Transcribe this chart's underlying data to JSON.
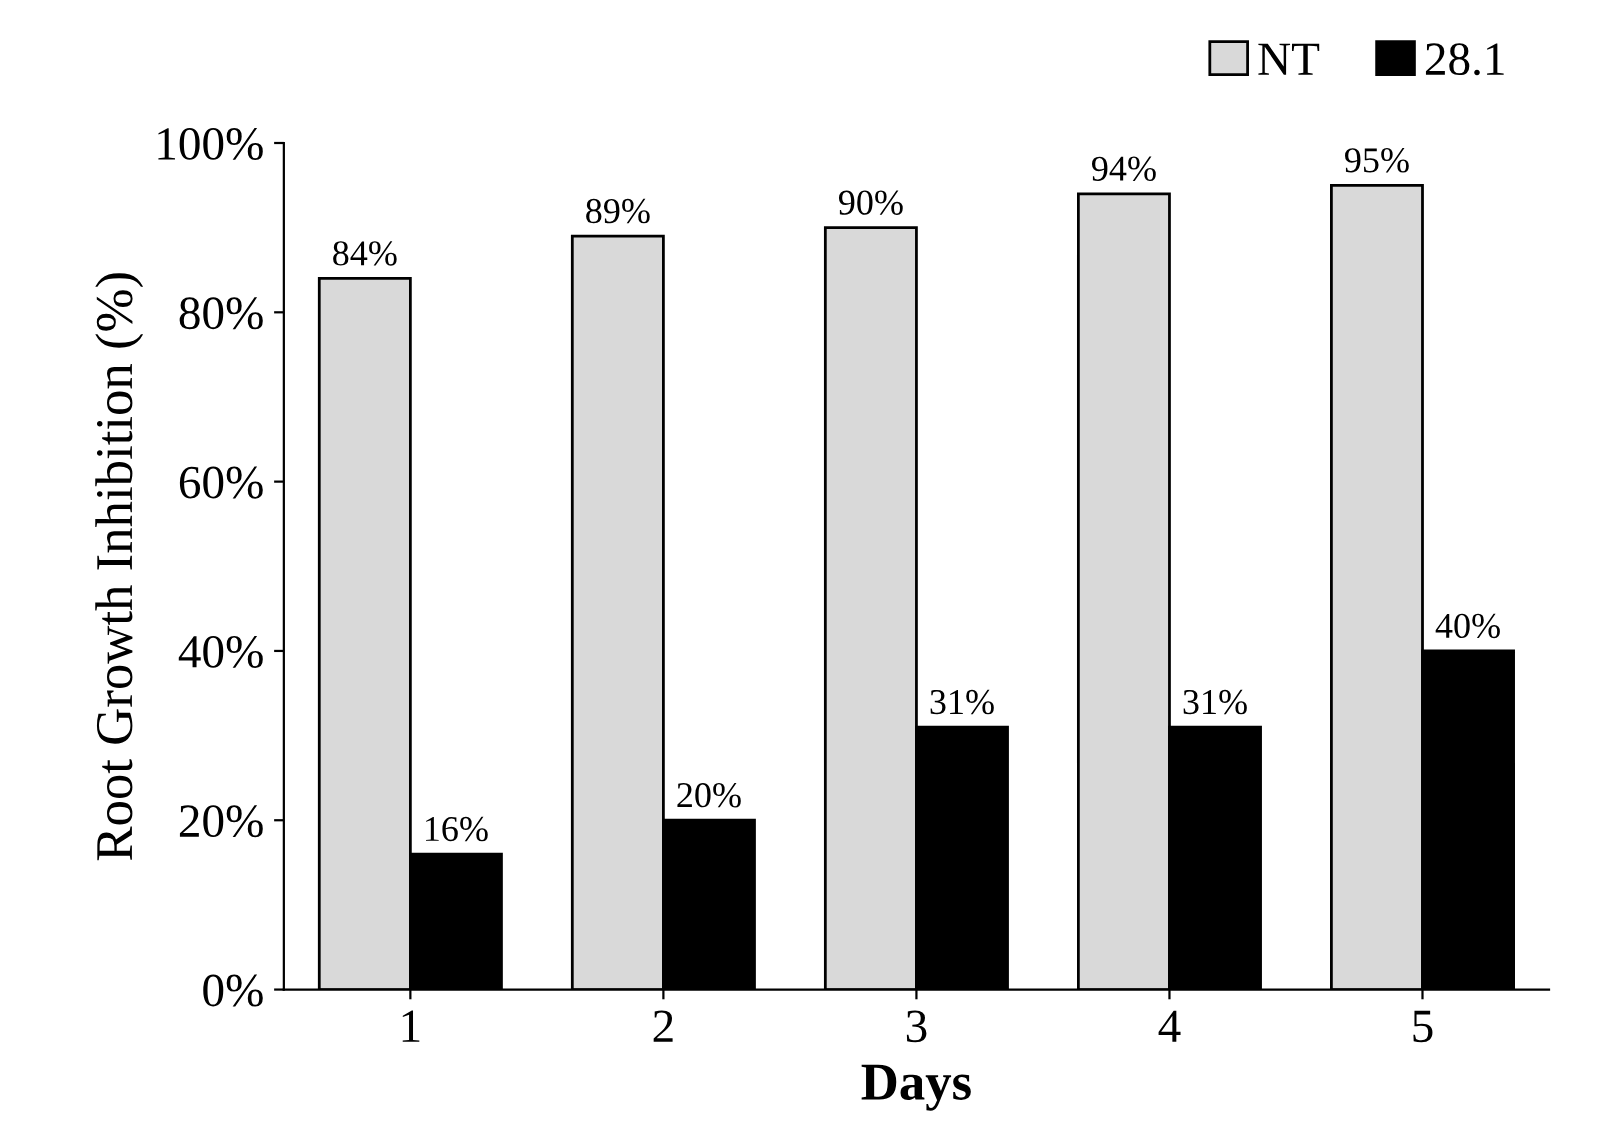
{
  "chart_data": {
    "type": "bar",
    "xlabel": "Days",
    "ylabel": "Root Growth Inhibition (%)",
    "categories": [
      "1",
      "2",
      "3",
      "4",
      "5"
    ],
    "series": [
      {
        "name": "NT",
        "color": "#d9d9d9",
        "values": [
          84,
          89,
          90,
          94,
          95
        ],
        "value_labels": [
          "84%",
          "89%",
          "90%",
          "94%",
          "95%"
        ]
      },
      {
        "name": "28.1",
        "color": "#000000",
        "values": [
          16,
          20,
          31,
          31,
          40
        ],
        "value_labels": [
          "16%",
          "20%",
          "31%",
          "31%",
          "40%"
        ]
      }
    ],
    "ylim": [
      0,
      100
    ],
    "yticks": [
      {
        "value": 0,
        "label": "0%"
      },
      {
        "value": 20,
        "label": "20%"
      },
      {
        "value": 40,
        "label": "40%"
      },
      {
        "value": 60,
        "label": "60%"
      },
      {
        "value": 80,
        "label": "80%"
      },
      {
        "value": 100,
        "label": "100%"
      }
    ],
    "grid": false,
    "legend": "top right"
  }
}
